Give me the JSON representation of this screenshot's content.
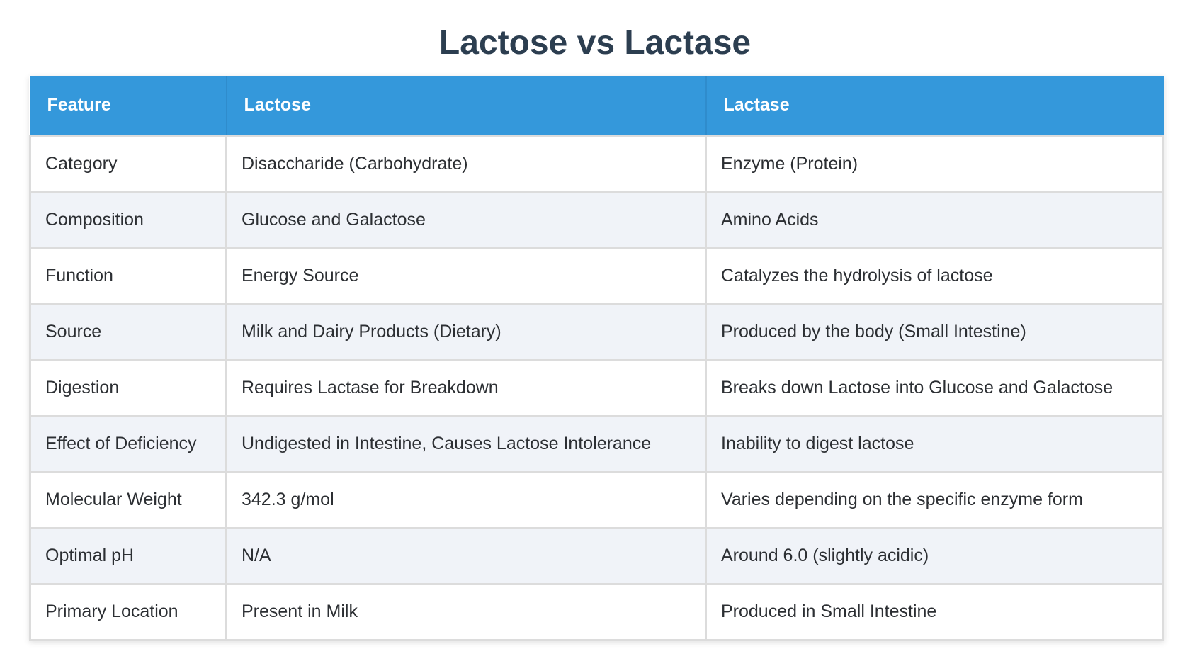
{
  "title": "Lactose vs Lactase",
  "table": {
    "headers": [
      "Feature",
      "Lactose",
      "Lactase"
    ],
    "rows": [
      [
        "Category",
        "Disaccharide (Carbohydrate)",
        "Enzyme (Protein)"
      ],
      [
        "Composition",
        "Glucose and Galactose",
        "Amino Acids"
      ],
      [
        "Function",
        "Energy Source",
        "Catalyzes the hydrolysis of lactose"
      ],
      [
        "Source",
        "Milk and Dairy Products (Dietary)",
        "Produced by the body (Small Intestine)"
      ],
      [
        "Digestion",
        "Requires Lactase for Breakdown",
        "Breaks down Lactose into Glucose and Galactose"
      ],
      [
        "Effect of Deficiency",
        "Undigested in Intestine, Causes Lactose Intolerance",
        "Inability to digest lactose"
      ],
      [
        "Molecular Weight",
        "342.3 g/mol",
        "Varies depending on the specific enzyme form"
      ],
      [
        "Optimal pH",
        "N/A",
        "Around 6.0 (slightly acidic)"
      ],
      [
        "Primary Location",
        "Present in Milk",
        "Produced in Small Intestine"
      ]
    ]
  },
  "colors": {
    "header_bg": "#3498db",
    "title": "#2c3e50",
    "row_alt_bg": "#f0f3f8",
    "border": "#dcdcdc"
  }
}
